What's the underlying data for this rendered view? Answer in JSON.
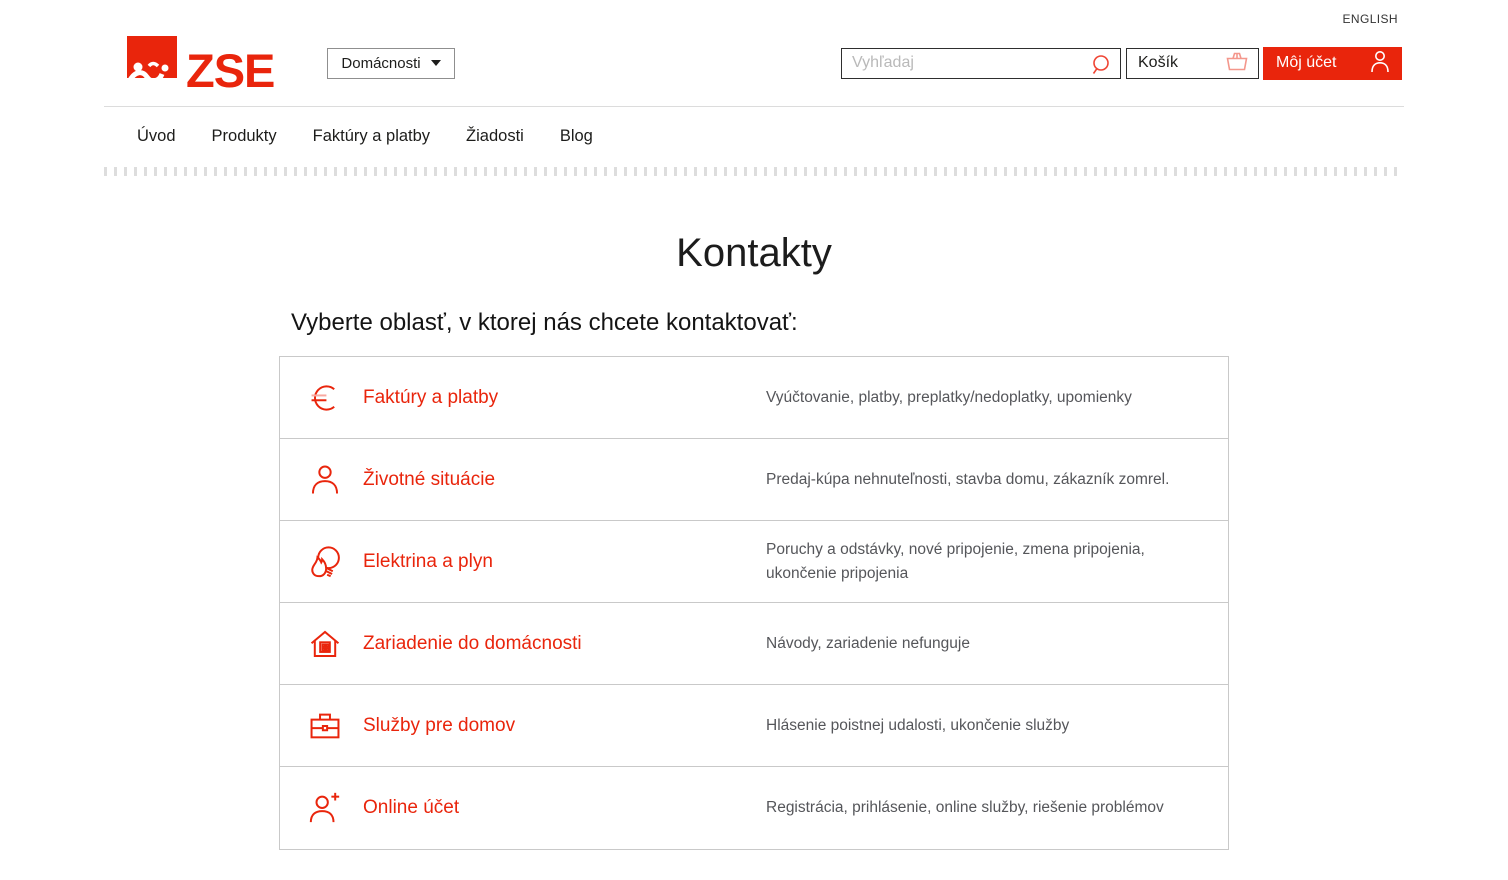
{
  "colors": {
    "brand_red": "#e9250c",
    "text_dark": "#1d1d1b",
    "text_gray": "#55565a",
    "border_light": "#c9c9c9"
  },
  "topbar": {
    "language_link": "ENGLISH"
  },
  "header": {
    "logo_text": "ZSE",
    "segment_dropdown": {
      "label": "Domácnosti"
    },
    "search": {
      "placeholder": "Vyhľadaj",
      "value": ""
    },
    "cart": {
      "label": "Košík"
    },
    "account": {
      "label": "Môj účet"
    }
  },
  "nav": {
    "items": [
      {
        "label": "Úvod"
      },
      {
        "label": "Produkty"
      },
      {
        "label": "Faktúry a platby"
      },
      {
        "label": "Žiadosti"
      },
      {
        "label": "Blog"
      }
    ]
  },
  "main": {
    "title": "Kontakty",
    "subtitle": "Vyberte oblasť, v ktorej nás chcete kontaktovať:",
    "contact_areas": [
      {
        "icon": "euro-icon",
        "title": "Faktúry a platby",
        "description": "Vyúčtovanie, platby, preplatky/nedoplatky, upomienky"
      },
      {
        "icon": "person-icon",
        "title": "Životné situácie",
        "description": "Predaj-kúpa nehnuteľnosti, stavba domu, zákazník zomrel."
      },
      {
        "icon": "flame-bulb-icon",
        "title": "Elektrina a plyn",
        "description": "Poruchy a odstávky, nové pripojenie, zmena pripojenia, ukončenie pripojenia"
      },
      {
        "icon": "house-appliance-icon",
        "title": "Zariadenie do domácnosti",
        "description": "Návody, zariadenie nefunguje"
      },
      {
        "icon": "briefcase-icon",
        "title": "Služby pre domov",
        "description": "Hlásenie poistnej udalosti, ukončenie služby"
      },
      {
        "icon": "person-plus-icon",
        "title": "Online účet",
        "description": "Registrácia, prihlásenie, online služby, riešenie problémov"
      }
    ]
  }
}
